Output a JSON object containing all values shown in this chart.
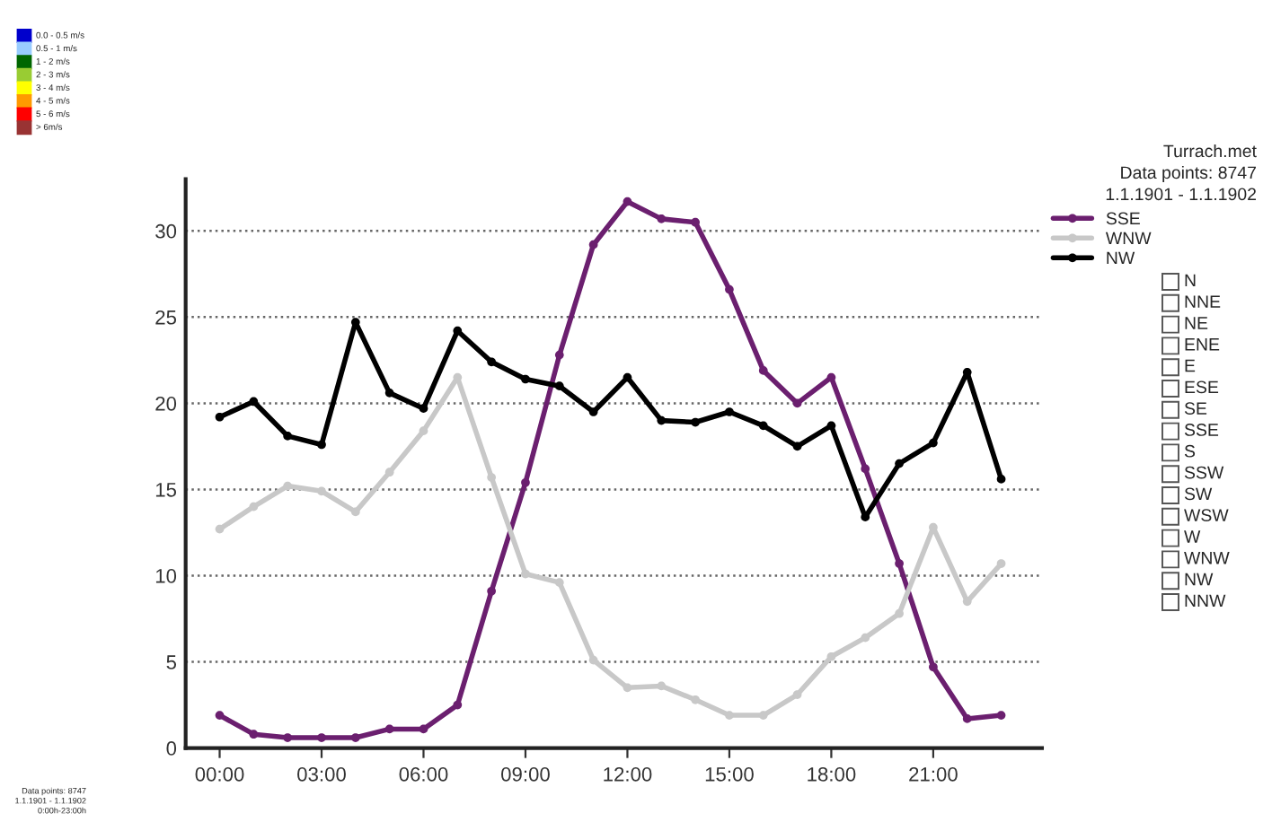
{
  "chart_data": {
    "type": "line",
    "x": [
      0,
      1,
      2,
      3,
      4,
      5,
      6,
      7,
      8,
      9,
      10,
      11,
      12,
      13,
      14,
      15,
      16,
      17,
      18,
      19,
      20,
      21,
      22,
      23
    ],
    "series": [
      {
        "name": "SSE",
        "color": "#6b1f6f",
        "values": [
          1.9,
          0.8,
          0.6,
          0.6,
          0.6,
          1.1,
          1.1,
          2.5,
          9.1,
          15.4,
          22.8,
          29.2,
          31.7,
          30.7,
          30.5,
          26.6,
          21.9,
          20.0,
          21.5,
          16.2,
          10.7,
          4.7,
          1.7,
          1.9
        ]
      },
      {
        "name": "WNW",
        "color": "#c8c8c8",
        "values": [
          12.7,
          14.0,
          15.2,
          14.9,
          13.7,
          16.0,
          18.4,
          21.5,
          15.7,
          10.1,
          9.6,
          5.1,
          3.5,
          3.6,
          2.8,
          1.9,
          1.9,
          3.1,
          5.3,
          6.4,
          7.8,
          12.8,
          8.5,
          10.7
        ]
      },
      {
        "name": "NW",
        "color": "#000000",
        "values": [
          19.2,
          20.1,
          18.1,
          17.6,
          24.7,
          20.6,
          19.7,
          24.2,
          22.4,
          21.4,
          21.0,
          19.5,
          21.5,
          19.0,
          18.9,
          19.5,
          18.7,
          17.5,
          18.7,
          13.4,
          16.5,
          17.7,
          21.8,
          15.6
        ]
      }
    ],
    "xlim": [
      -1,
      24.2
    ],
    "xticks": [
      {
        "value": 0,
        "label": "00:00"
      },
      {
        "value": 3,
        "label": "03:00"
      },
      {
        "value": 6,
        "label": "06:00"
      },
      {
        "value": 9,
        "label": "09:00"
      },
      {
        "value": 12,
        "label": "12:00"
      },
      {
        "value": 15,
        "label": "15:00"
      },
      {
        "value": 18,
        "label": "18:00"
      },
      {
        "value": 21,
        "label": "21:00"
      }
    ],
    "ylim": [
      0,
      33
    ],
    "yticks": [
      0,
      5,
      10,
      15,
      20,
      25,
      30
    ],
    "grid": "y",
    "legend": "top right",
    "marker": "circle",
    "line_style": "solid",
    "annotations": [
      "Turrach.met",
      "Data points: 8747",
      "1.1.1901 - 1.1.1902",
      "0.0 - 0.5 m/s",
      "0.5 - 1 m/s",
      "1 - 2 m/s",
      "2 - 3 m/s",
      "3 - 4 m/s",
      "4 - 5 m/s",
      "5 - 6 m/s",
      "> 6m/s",
      "N",
      "NNE",
      "NE",
      "ENE",
      "E",
      "ESE",
      "SE",
      "SSE",
      "S",
      "SSW",
      "SW",
      "WSW",
      "W",
      "WNW",
      "NW",
      "NNW",
      "Data points: 8747",
      "1.1.1901 - 1.1.1902",
      "0:00h-23:00h"
    ]
  }
}
